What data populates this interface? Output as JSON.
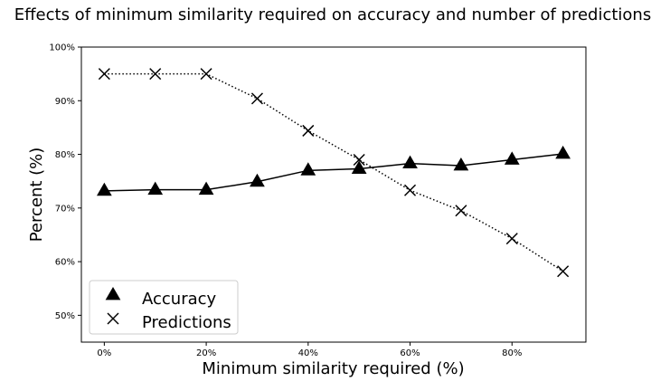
{
  "chart_data": {
    "type": "line",
    "title": "Effects of minimum similarity required on accuracy and number of predictions",
    "xlabel": "Minimum similarity required (%)",
    "ylabel": "Percent (%)",
    "xlim": [
      -4.5,
      94.5
    ],
    "ylim": [
      45,
      100
    ],
    "x_ticks": [
      0,
      20,
      40,
      60,
      80
    ],
    "x_tick_labels": [
      "0%",
      "20%",
      "40%",
      "60%",
      "80%"
    ],
    "y_ticks": [
      50,
      60,
      70,
      80,
      90,
      100
    ],
    "y_tick_labels": [
      "50%",
      "60%",
      "70%",
      "80%",
      "90%",
      "100%"
    ],
    "grid": false,
    "legend_position": "lower-left",
    "x": [
      0,
      10,
      20,
      30,
      40,
      50,
      60,
      70,
      80,
      90
    ],
    "series": [
      {
        "name": "Accuracy",
        "values": [
          73.2,
          73.4,
          73.4,
          74.9,
          77.0,
          77.3,
          78.3,
          77.9,
          79.0,
          80.1
        ],
        "marker": "triangle",
        "line_style": "solid",
        "color": "#000000"
      },
      {
        "name": "Predictions",
        "values": [
          95.0,
          95.0,
          95.0,
          90.4,
          84.4,
          79.0,
          73.3,
          69.5,
          64.3,
          58.2
        ],
        "marker": "x",
        "line_style": "dotted",
        "color": "#000000"
      }
    ]
  }
}
